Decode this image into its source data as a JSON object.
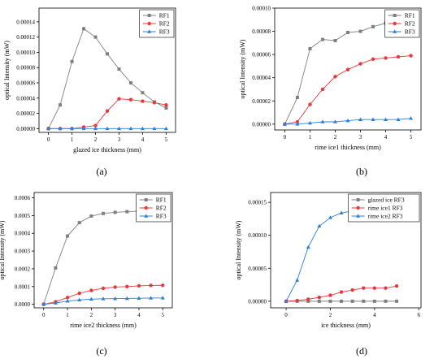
{
  "panels": [
    {
      "panel_label": "(a)",
      "chart_data": {
        "type": "line",
        "xlabel": "glazed ice thickness (mm)",
        "ylabel": "optical Intensity (mW)",
        "xlim": [
          -0.4,
          5.4
        ],
        "ylim": [
          -5e-06,
          0.000158
        ],
        "xticks": [
          0,
          1,
          2,
          3,
          4,
          5
        ],
        "yticks": [
          0,
          2e-05,
          4e-05,
          6e-05,
          8e-05,
          0.0001,
          0.00012,
          0.00014
        ],
        "ytick_labels": [
          "0.00000",
          "0.00002",
          "0.00004",
          "0.00006",
          "0.00008",
          "0.00010",
          "0.00012",
          "0.00014"
        ],
        "x": [
          0,
          0.5,
          1,
          1.5,
          2,
          2.5,
          3,
          3.5,
          4,
          4.5,
          5
        ],
        "legend_position": "top-right",
        "grid": false,
        "series": [
          {
            "name": "RF1",
            "color": "#7f7f7f",
            "marker": "square",
            "values": [
              0,
              3.1e-05,
              8.8e-05,
              0.000131,
              0.00012,
              9.8e-05,
              7.8e-05,
              6e-05,
              4.7e-05,
              3.5e-05,
              2.7e-05
            ]
          },
          {
            "name": "RF2",
            "color": "#e8383b",
            "marker": "circle",
            "values": [
              0,
              0,
              0,
              2e-06,
              4e-06,
              2.3e-05,
              3.9e-05,
              3.8e-05,
              3.6e-05,
              3.4e-05,
              3.1e-05
            ]
          },
          {
            "name": "RF3",
            "color": "#2d7fd6",
            "marker": "triangle",
            "values": [
              0,
              0,
              0,
              0,
              0,
              0,
              0,
              0,
              0,
              0,
              0
            ]
          }
        ]
      }
    },
    {
      "panel_label": "(b)",
      "chart_data": {
        "type": "line",
        "xlabel": "rime ice1 thickness (mm)",
        "ylabel": "optical Intensity (mW)",
        "xlim": [
          -0.4,
          5.4
        ],
        "ylim": [
          -5e-06,
          0.0001
        ],
        "xticks": [
          0,
          1,
          2,
          3,
          4,
          5
        ],
        "yticks": [
          0,
          2e-05,
          4e-05,
          6e-05,
          8e-05,
          0.0001
        ],
        "ytick_labels": [
          "0.00000",
          "0.00002",
          "0.00004",
          "0.00006",
          "0.00008",
          "0.00010"
        ],
        "x": [
          0,
          0.5,
          1,
          1.5,
          2,
          2.5,
          3,
          3.5,
          4,
          4.5,
          5
        ],
        "legend_position": "top-right",
        "grid": false,
        "series": [
          {
            "name": "RF1",
            "color": "#7f7f7f",
            "marker": "square",
            "values": [
              0,
              2.3e-05,
              6.5e-05,
              7.3e-05,
              7.2e-05,
              7.9e-05,
              8e-05,
              8.4e-05,
              8.7e-05,
              8.9e-05,
              9e-05
            ]
          },
          {
            "name": "RF2",
            "color": "#e8383b",
            "marker": "circle",
            "values": [
              0,
              2e-06,
              1.7e-05,
              3e-05,
              4.1e-05,
              4.7e-05,
              5.2e-05,
              5.6e-05,
              5.7e-05,
              5.8e-05,
              5.9e-05
            ]
          },
          {
            "name": "RF3",
            "color": "#2d7fd6",
            "marker": "triangle",
            "values": [
              0,
              0,
              1e-06,
              2e-06,
              2e-06,
              3e-06,
              4e-06,
              4e-06,
              4e-06,
              4e-06,
              5e-06
            ]
          }
        ]
      }
    },
    {
      "panel_label": "(c)",
      "chart_data": {
        "type": "line",
        "xlabel": "rime ice2 thickness (mm)",
        "ylabel": "optical Intensity (mW)",
        "xlim": [
          -0.4,
          5.4
        ],
        "ylim": [
          -2e-05,
          0.00063
        ],
        "xticks": [
          0,
          1,
          2,
          3,
          4,
          5
        ],
        "yticks": [
          0,
          0.0001,
          0.0002,
          0.0003,
          0.0004,
          0.0005,
          0.0006
        ],
        "ytick_labels": [
          "0.0000",
          "0.0001",
          "0.0002",
          "0.0003",
          "0.0004",
          "0.0005",
          "0.0006"
        ],
        "x": [
          0,
          0.5,
          1,
          1.5,
          2,
          2.5,
          3,
          3.5,
          4,
          4.5,
          5
        ],
        "legend_position": "top-right",
        "grid": false,
        "series": [
          {
            "name": "RF1",
            "color": "#7f7f7f",
            "marker": "square",
            "values": [
              0,
              0.000205,
              0.000385,
              0.00046,
              0.000497,
              0.000512,
              0.000518,
              0.000522,
              0.000525,
              0.000527,
              0.000528
            ]
          },
          {
            "name": "RF2",
            "color": "#e8383b",
            "marker": "circle",
            "values": [
              0,
              1.4e-05,
              3.8e-05,
              6.2e-05,
              7.8e-05,
              9e-05,
              9.7e-05,
              0.0001,
              0.000104,
              0.000106,
              0.000107
            ]
          },
          {
            "name": "RF3",
            "color": "#2d7fd6",
            "marker": "triangle",
            "values": [
              0,
              7e-06,
              1.8e-05,
              2.5e-05,
              2.9e-05,
              3.1e-05,
              3.2e-05,
              3.3e-05,
              3.4e-05,
              3.5e-05,
              3.6e-05
            ]
          }
        ]
      }
    },
    {
      "panel_label": "(d)",
      "chart_data": {
        "type": "line",
        "xlabel": "ice thickness (mm)",
        "ylabel": "optical Intensity (mW)",
        "xlim": [
          -0.7,
          6.1
        ],
        "ylim": [
          -1e-05,
          0.000165
        ],
        "xticks": [
          0,
          2,
          4,
          6
        ],
        "yticks": [
          0,
          5e-05,
          0.0001,
          0.00015
        ],
        "ytick_labels": [
          "0.00000",
          "0.00005",
          "0.00010",
          "0.00015"
        ],
        "x": [
          0,
          0.5,
          1,
          1.5,
          2,
          2.5,
          3,
          3.5,
          4,
          4.5,
          5
        ],
        "legend_position": "top-right",
        "grid": false,
        "series": [
          {
            "name": "glazed ice RF3",
            "color": "#7f7f7f",
            "marker": "square",
            "values": [
              0,
              0,
              0,
              0,
              0,
              0,
              0,
              0,
              0,
              0,
              0
            ]
          },
          {
            "name": "rime ice1 RF3",
            "color": "#e8383b",
            "marker": "circle",
            "values": [
              0,
              1e-06,
              3e-06,
              6e-06,
              9e-06,
              1.4e-05,
              1.7e-05,
              2e-05,
              2e-05,
              2e-05,
              2.3e-05
            ]
          },
          {
            "name": "rime ice2 RF3",
            "color": "#2d7fd6",
            "marker": "triangle",
            "values": [
              0,
              3.2e-05,
              8.2e-05,
              0.000114,
              0.000127,
              0.000134,
              0.000137,
              0.000141,
              0.000143,
              0.000147,
              0.000149
            ]
          }
        ]
      }
    }
  ]
}
